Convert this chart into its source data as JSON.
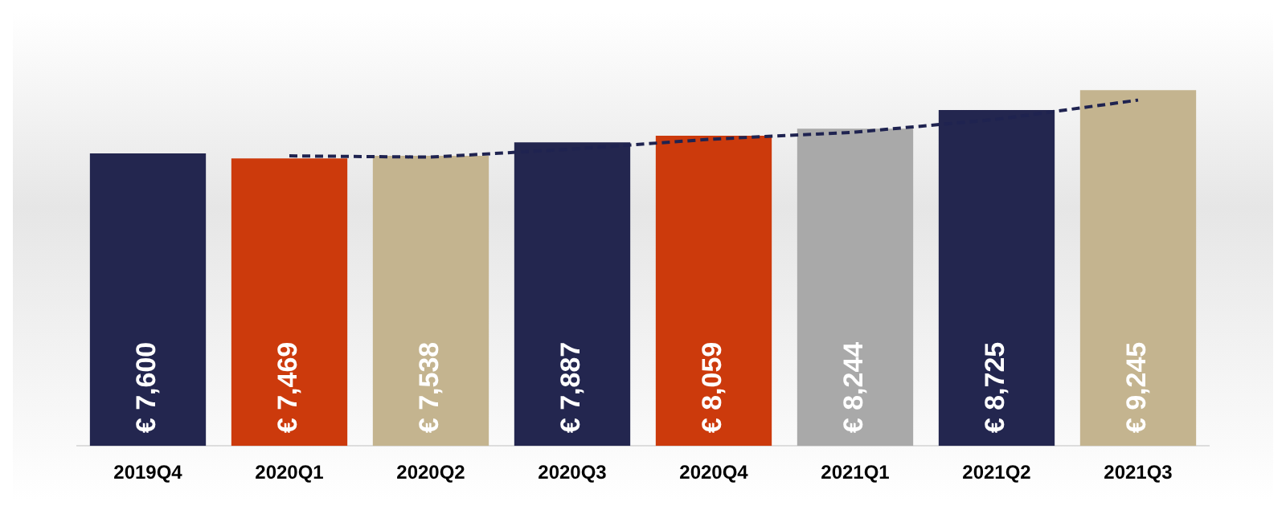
{
  "chart_data": {
    "type": "bar",
    "categories": [
      "2019Q4",
      "2020Q1",
      "2020Q2",
      "2020Q3",
      "2020Q4",
      "2021Q1",
      "2021Q2",
      "2021Q3"
    ],
    "values": [
      7600,
      7469,
      7538,
      7887,
      8059,
      8244,
      8725,
      9245
    ],
    "colors": [
      "#23264f",
      "#cc3a0c",
      "#c4b48f",
      "#23264f",
      "#cc3a0c",
      "#a9a9a9",
      "#23264f",
      "#c4b48f"
    ],
    "value_labels": [
      "€ 7,600",
      "€ 7,469",
      "€ 7,538",
      "€ 7,887",
      "€ 8,059",
      "€ 8,244",
      "€ 8,725",
      "€ 9,245"
    ],
    "series": [
      {
        "type": "line",
        "color": "#1f2350",
        "line_style": "dashed",
        "marker": "none",
        "values": [
          null,
          7535,
          7504,
          7713,
          7973,
          8152,
          8485,
          8985
        ]
      }
    ],
    "legend": false,
    "grid": false
  }
}
